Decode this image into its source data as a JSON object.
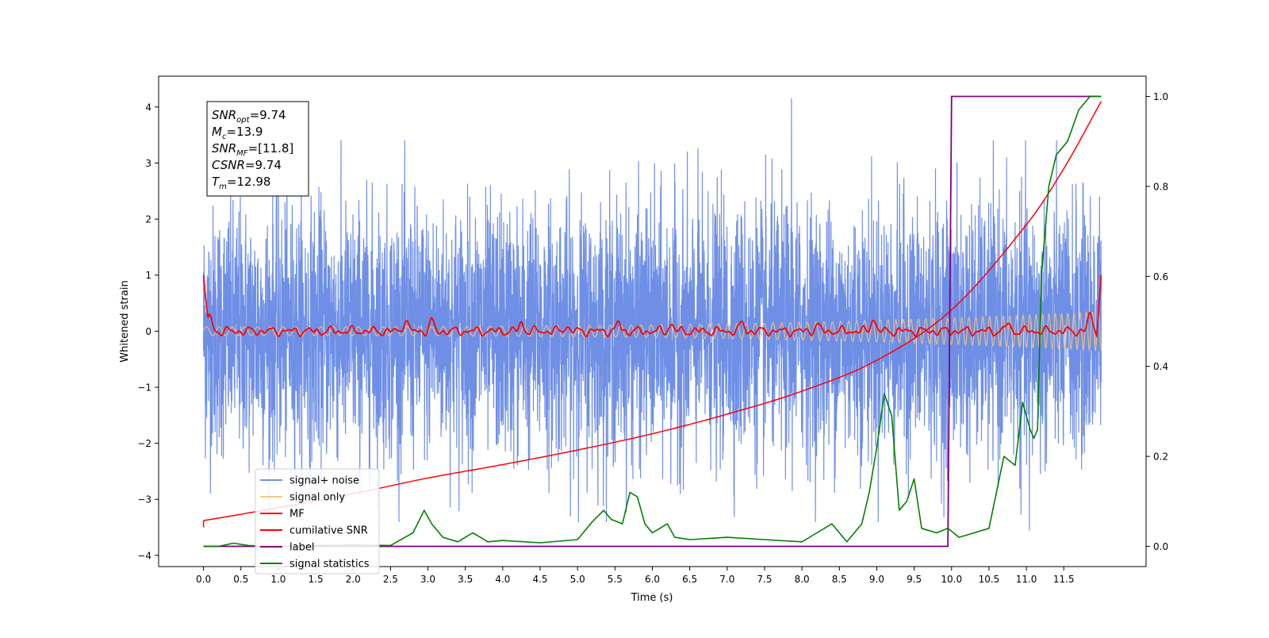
{
  "chart_data": {
    "type": "line",
    "xlabel": "Time (s)",
    "ylabel": "Whitened strain",
    "xlim": [
      -0.6,
      12.6
    ],
    "ylim": [
      -4.2,
      4.55
    ],
    "y2lim": [
      -0.045,
      1.045
    ],
    "xticks": [
      0.0,
      0.5,
      1.0,
      1.5,
      2.0,
      2.5,
      3.0,
      3.5,
      4.0,
      4.5,
      5.0,
      5.5,
      6.0,
      6.5,
      7.0,
      7.5,
      8.0,
      8.5,
      9.0,
      9.5,
      10.0,
      10.5,
      11.0,
      11.5
    ],
    "xtick_labels": [
      "0.0",
      "0.5",
      "1.0",
      "1.5",
      "2.0",
      "2.5",
      "3.0",
      "3.5",
      "4.0",
      "4.5",
      "5.0",
      "5.5",
      "6.0",
      "6.5",
      "7.0",
      "7.5",
      "8.0",
      "8.5",
      "9.0",
      "9.5",
      "10.0",
      "10.5",
      "11.0",
      "11.5"
    ],
    "yticks": [
      4,
      3,
      2,
      1,
      0,
      -1,
      -2,
      -3,
      -4
    ],
    "ytick_labels": [
      "4",
      "3",
      "2",
      "1",
      "0",
      "−1",
      "−2",
      "−3",
      "−4"
    ],
    "y2ticks": [
      1.0,
      0.8,
      0.6,
      0.4,
      0.2,
      0.0
    ],
    "y2tick_labels": [
      "1.0",
      "0.8",
      "0.6",
      "0.4",
      "0.2",
      "0.0"
    ],
    "legend_position": "lower-left",
    "annotation_box": [
      {
        "sym": "SNR",
        "sub": "opt",
        "rest": "=9.74"
      },
      {
        "sym": "M",
        "sub": "c",
        "rest": "=13.9"
      },
      {
        "sym": "SNR",
        "sub": "MF",
        "rest": "=[11.8]"
      },
      {
        "sym": "CSNR",
        "sub": "",
        "rest": "=9.74"
      },
      {
        "sym": "T",
        "sub": "m",
        "rest": "=12.98"
      }
    ],
    "series": [
      {
        "name": "signal+ noise",
        "color": "#6f8fe6",
        "axis": "left",
        "kind": "noise",
        "x_range": [
          0.0,
          12.0
        ],
        "amplitude": 1.1,
        "approx_max": 4.15,
        "approx_min": -3.55
      },
      {
        "name": "signal only",
        "color": "#f5c77e",
        "axis": "left",
        "kind": "chirp",
        "x_range": [
          0.0,
          12.0
        ],
        "amplitude_start": 0.08,
        "amplitude_end": 0.35
      },
      {
        "name": "MF",
        "color": "#ff0000",
        "axis": "left",
        "kind": "mf",
        "x_range": [
          0.0,
          12.0
        ],
        "start_value": 1.0,
        "end_value": 1.0,
        "baseline": 0.0,
        "bumps": [
          [
            0.08,
            0.3
          ],
          [
            2.7,
            0.22
          ],
          [
            3.05,
            0.18
          ],
          [
            4.25,
            0.15
          ],
          [
            4.85,
            0.1
          ],
          [
            5.55,
            0.15
          ],
          [
            6.25,
            0.13
          ],
          [
            7.2,
            0.15
          ],
          [
            8.2,
            0.12
          ],
          [
            8.95,
            0.25
          ],
          [
            10.75,
            0.14
          ],
          [
            11.85,
            0.3
          ]
        ]
      },
      {
        "name": "cumilative SNR",
        "color": "#ff0000",
        "axis": "left",
        "x": [
          0.0,
          1.0,
          2.0,
          3.0,
          4.0,
          5.0,
          6.0,
          7.0,
          8.0,
          9.0,
          10.0,
          11.0,
          11.5,
          12.0
        ],
        "y": [
          -3.38,
          -3.15,
          -2.9,
          -2.62,
          -2.38,
          -2.12,
          -1.83,
          -1.48,
          -1.07,
          -0.52,
          0.38,
          1.9,
          2.9,
          4.1
        ],
        "start_point": [
          0.0,
          -3.5
        ]
      },
      {
        "name": "label",
        "color": "#800080",
        "axis": "right",
        "x": [
          0.0,
          9.95,
          10.0,
          12.0
        ],
        "y": [
          0.0,
          0.0,
          1.0,
          1.0
        ]
      },
      {
        "name": "signal statistics",
        "color": "#008000",
        "axis": "right",
        "x": [
          0.0,
          0.2,
          0.4,
          0.6,
          0.8,
          1.0,
          1.5,
          2.0,
          2.5,
          2.8,
          2.95,
          3.05,
          3.2,
          3.4,
          3.5,
          3.6,
          3.7,
          3.8,
          4.0,
          4.5,
          5.0,
          5.2,
          5.35,
          5.45,
          5.6,
          5.7,
          5.8,
          5.9,
          6.0,
          6.1,
          6.2,
          6.3,
          6.5,
          7.0,
          7.5,
          8.0,
          8.2,
          8.4,
          8.6,
          8.8,
          8.9,
          9.0,
          9.1,
          9.2,
          9.3,
          9.4,
          9.5,
          9.6,
          9.8,
          9.95,
          10.1,
          10.3,
          10.5,
          10.7,
          10.85,
          10.95,
          11.05,
          11.1,
          11.15,
          11.2,
          11.3,
          11.4,
          11.55,
          11.7,
          11.85,
          12.0
        ],
        "y": [
          0.0,
          0.0,
          0.007,
          0.002,
          0.0,
          0.0,
          0.002,
          0.003,
          0.002,
          0.03,
          0.08,
          0.05,
          0.02,
          0.01,
          0.02,
          0.03,
          0.02,
          0.01,
          0.013,
          0.008,
          0.015,
          0.055,
          0.08,
          0.06,
          0.05,
          0.12,
          0.11,
          0.05,
          0.03,
          0.04,
          0.05,
          0.02,
          0.015,
          0.02,
          0.015,
          0.01,
          0.03,
          0.05,
          0.01,
          0.05,
          0.12,
          0.22,
          0.34,
          0.29,
          0.08,
          0.1,
          0.15,
          0.04,
          0.03,
          0.04,
          0.02,
          0.03,
          0.04,
          0.2,
          0.18,
          0.32,
          0.26,
          0.24,
          0.26,
          0.6,
          0.8,
          0.87,
          0.9,
          0.97,
          1.0,
          1.0
        ]
      }
    ]
  }
}
